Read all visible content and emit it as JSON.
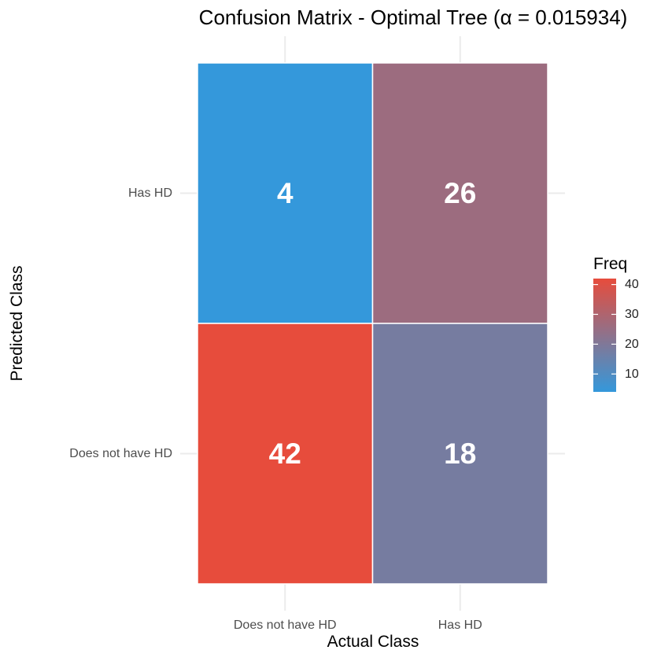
{
  "chart_data": {
    "type": "heatmap",
    "title": "Confusion Matrix - Optimal Tree (α = 0.015934)",
    "xlabel": "Actual Class",
    "ylabel": "Predicted Class",
    "x_categories": [
      "Does not have HD",
      "Has HD"
    ],
    "y_categories": [
      "Does not have HD",
      "Has HD"
    ],
    "cells": [
      {
        "actual": "Does not have HD",
        "predicted": "Has HD",
        "value": 4
      },
      {
        "actual": "Has HD",
        "predicted": "Has HD",
        "value": 26
      },
      {
        "actual": "Does not have HD",
        "predicted": "Does not have HD",
        "value": 42
      },
      {
        "actual": "Has HD",
        "predicted": "Does not have HD",
        "value": 18
      }
    ],
    "legend": {
      "title": "Freq",
      "ticks": [
        10,
        20,
        30,
        40
      ],
      "range": [
        4,
        42
      ],
      "low_color": "#3498db",
      "high_color": "#e74c3c"
    },
    "grid": true
  }
}
